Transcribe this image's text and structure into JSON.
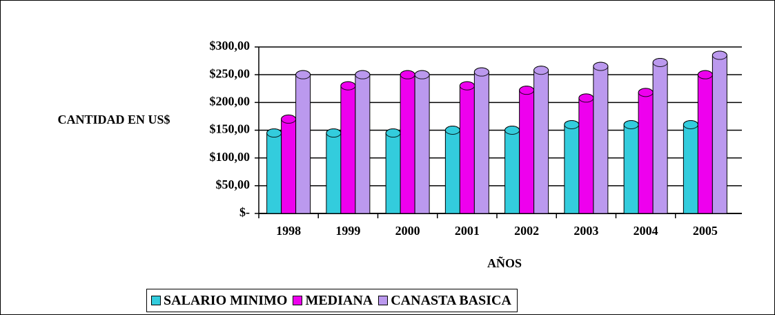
{
  "chart_data": {
    "type": "bar",
    "x_label": "AÑOS",
    "y_label": "CANTIDAD EN US$",
    "categories": [
      "1998",
      "1999",
      "2000",
      "2001",
      "2002",
      "2003",
      "2004",
      "2005"
    ],
    "series": [
      {
        "name": "SALARIO MINIMO",
        "color": "#33ccdd",
        "values": [
          145,
          145,
          145,
          150,
          150,
          160,
          160,
          160
        ]
      },
      {
        "name": "MEDIANA",
        "color": "#ee00ee",
        "values": [
          170,
          230,
          250,
          230,
          222,
          208,
          218,
          250
        ]
      },
      {
        "name": "CANASTA BASICA",
        "color": "#bb99ee",
        "values": [
          250,
          250,
          250,
          255,
          258,
          265,
          272,
          285
        ]
      }
    ],
    "ylim": [
      0,
      300
    ],
    "yticks": [
      {
        "value": 0,
        "label": "$-"
      },
      {
        "value": 50,
        "label": "$50,00"
      },
      {
        "value": 100,
        "label": "$100,00"
      },
      {
        "value": 150,
        "label": "$150,00"
      },
      {
        "value": 200,
        "label": "$200,00"
      },
      {
        "value": 250,
        "label": "$250,00"
      },
      {
        "value": 300,
        "label": "$300,00"
      }
    ],
    "grid": true
  }
}
